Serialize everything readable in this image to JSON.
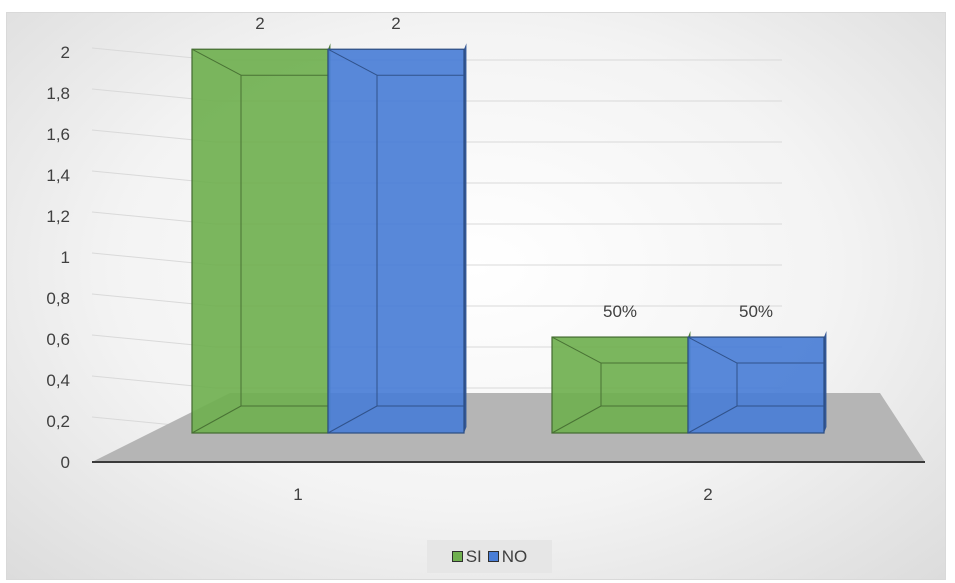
{
  "chart_data": {
    "type": "bar",
    "categories": [
      "1",
      "2"
    ],
    "series": [
      {
        "name": "SI",
        "values": [
          2,
          0.5
        ],
        "data_labels": [
          "2",
          "50%"
        ],
        "color": "#70b050"
      },
      {
        "name": "NO",
        "values": [
          2,
          0.5
        ],
        "data_labels": [
          "2",
          "50%"
        ],
        "color": "#4a7ed6"
      }
    ],
    "y_ticks": [
      "0",
      "0,2",
      "0,4",
      "0,6",
      "0,8",
      "1",
      "1,2",
      "1,4",
      "1,6",
      "1,8",
      "2"
    ],
    "ylim": [
      0,
      2
    ],
    "grid": true,
    "legend_position": "bottom",
    "style": "3d-clustered-column"
  }
}
